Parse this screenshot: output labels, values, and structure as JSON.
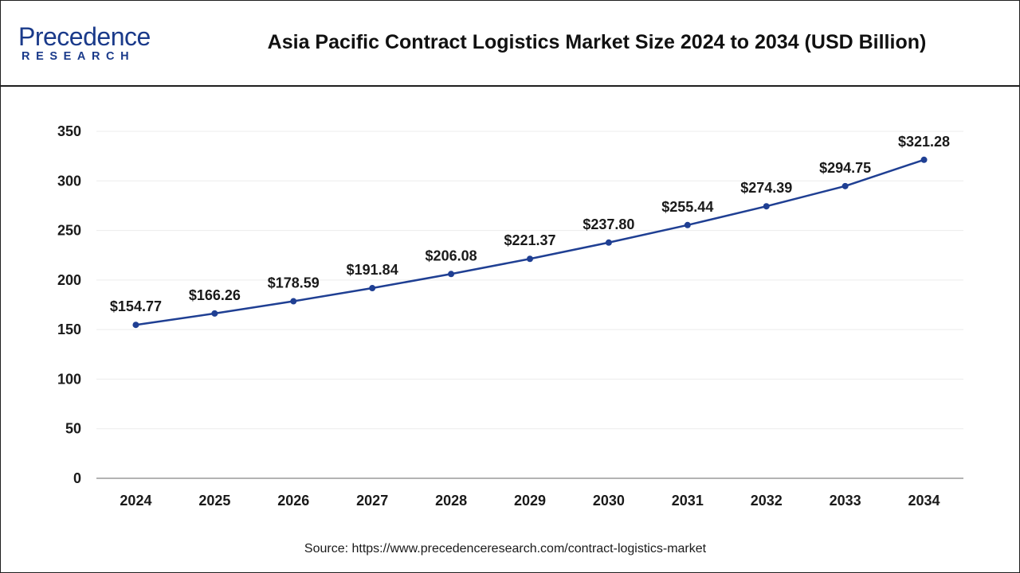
{
  "brand": {
    "name": "Precedence",
    "sub": "RESEARCH",
    "color": "#1a3a8a"
  },
  "title": "Asia Pacific Contract Logistics Market Size 2024 to 2034 (USD Billion)",
  "source": "Source: https://www.precedenceresearch.com/contract-logistics-market",
  "chart_data": {
    "type": "line",
    "title": "Asia Pacific Contract Logistics Market Size 2024 to 2034 (USD Billion)",
    "xlabel": "",
    "ylabel": "",
    "categories": [
      "2024",
      "2025",
      "2026",
      "2027",
      "2028",
      "2029",
      "2030",
      "2031",
      "2032",
      "2033",
      "2034"
    ],
    "series": [
      {
        "values": [
          154.77,
          166.26,
          178.59,
          191.84,
          206.08,
          221.37,
          237.8,
          255.44,
          274.39,
          294.75,
          321.28
        ],
        "labels": [
          "$154.77",
          "$166.26",
          "$178.59",
          "$191.84",
          "$206.08",
          "$221.37",
          "$237.80",
          "$255.44",
          "$274.39",
          "$294.75",
          "$321.28"
        ],
        "color": "#1f3f93"
      }
    ],
    "ylim": [
      0,
      350
    ],
    "yticks": [
      "0",
      "50",
      "100",
      "150",
      "200",
      "250",
      "300",
      "350"
    ],
    "grid": true,
    "legend": "none"
  }
}
